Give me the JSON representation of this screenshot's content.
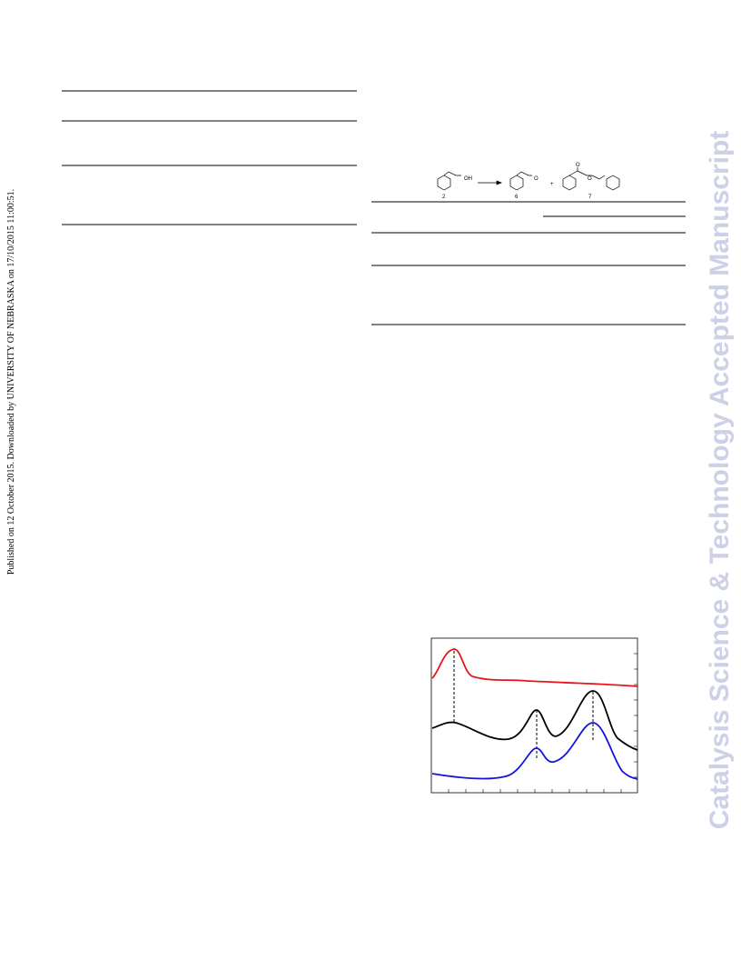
{
  "side_note": "Published on 12 October 2015. Downloaded by UNIVERSITY OF NEBRASKA on 17/10/2015 11:00:51.",
  "watermark": "Catalysis Science & Technology Accepted Manuscript",
  "scheme": {
    "reactant_group": "OH",
    "reactant_number": "2",
    "aldehyde_group": "O",
    "aldehyde_number": "6",
    "plus": "+",
    "ester_carbonyl": "O",
    "ester_oxygen": "O",
    "ester_number": "7"
  }
}
